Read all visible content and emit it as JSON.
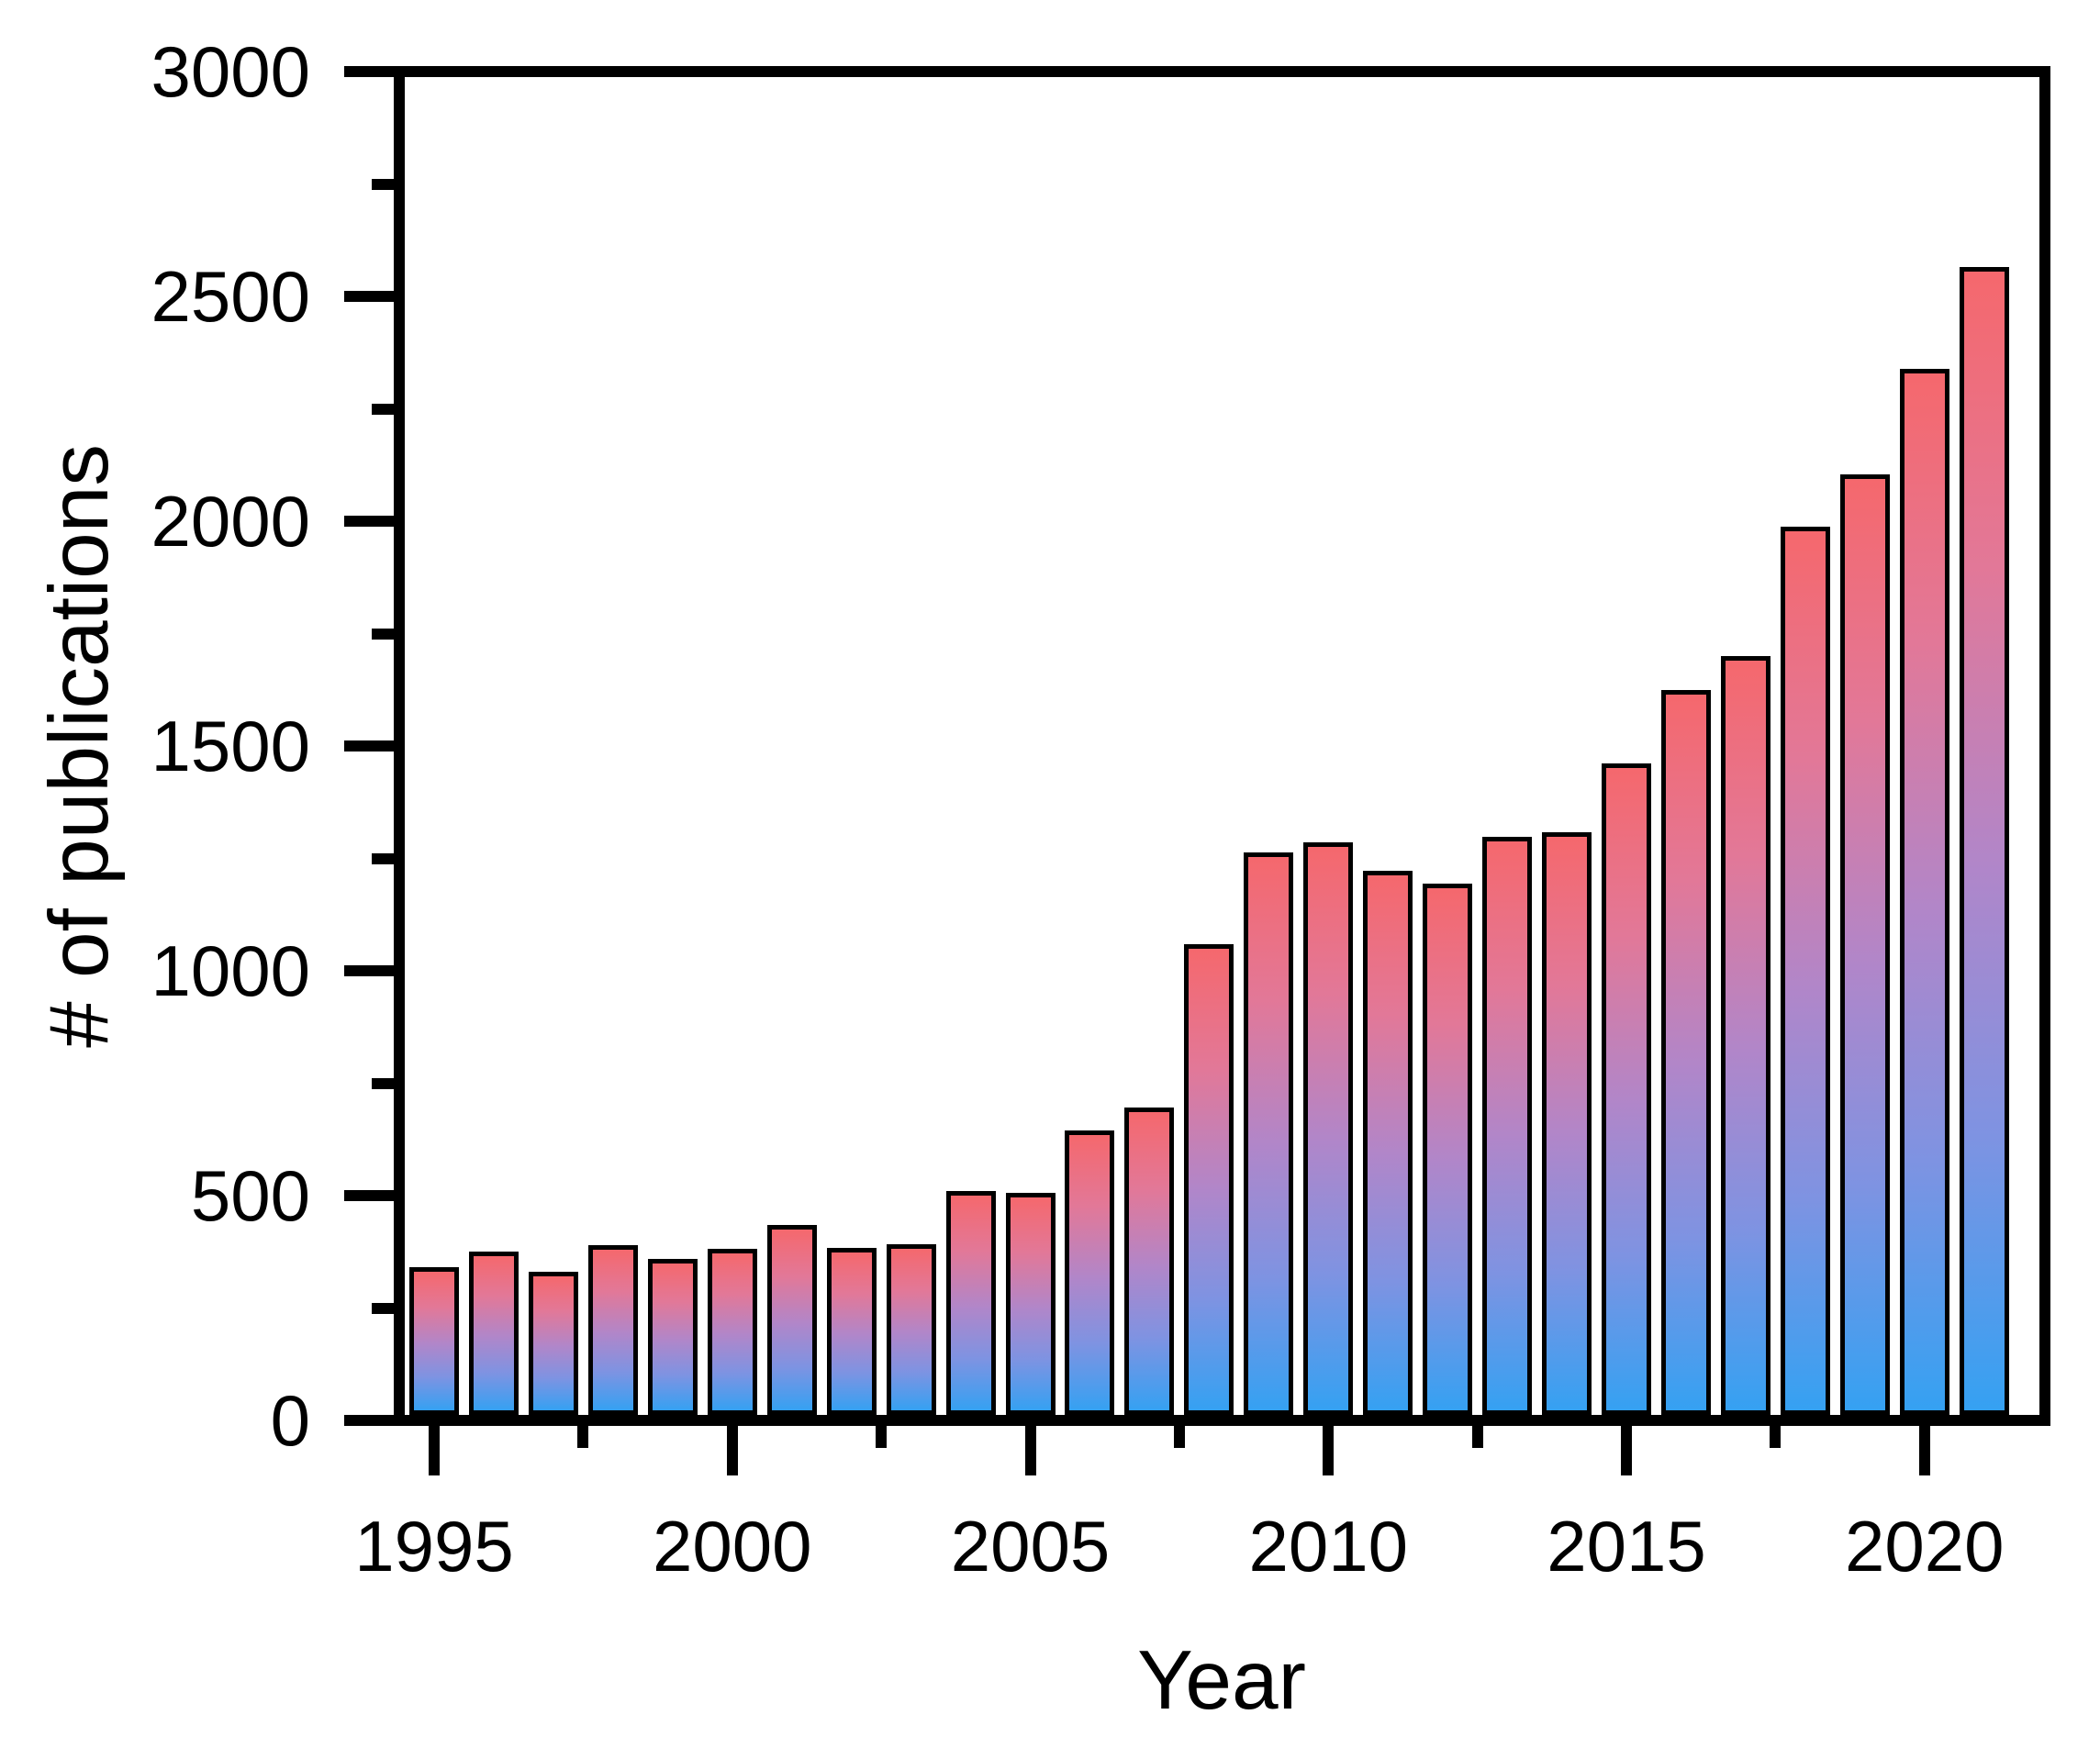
{
  "chart_data": {
    "type": "bar",
    "title": "",
    "xlabel": "Year",
    "ylabel": "# of publications",
    "x": [
      1995,
      1996,
      1997,
      1998,
      1999,
      2000,
      2001,
      2002,
      2003,
      2004,
      2005,
      2006,
      2007,
      2008,
      2009,
      2010,
      2011,
      2012,
      2013,
      2014,
      2015,
      2016,
      2017,
      2018,
      2019,
      2020,
      2021
    ],
    "values": [
      340,
      376,
      330,
      389,
      359,
      382,
      434,
      384,
      391,
      510,
      506,
      645,
      695,
      1060,
      1263,
      1285,
      1223,
      1193,
      1297,
      1308,
      1461,
      1625,
      1701,
      1987,
      2104,
      2338,
      2565
    ],
    "ylim": [
      0,
      3000
    ],
    "y_major_ticks": [
      0,
      500,
      1000,
      1500,
      2000,
      2500,
      3000
    ],
    "y_major_tick_labels": [
      "0",
      "500",
      "1000",
      "1500",
      "2000",
      "2500",
      "3000"
    ],
    "y_minor_ticks": [
      250,
      750,
      1250,
      1750,
      2250,
      2750
    ],
    "x_major_ticks": [
      1995,
      2000,
      2005,
      2010,
      2015,
      2020
    ],
    "x_major_tick_labels": [
      "1995",
      "2000",
      "2005",
      "2010",
      "2015",
      "2020"
    ],
    "x_minor_ticks": [
      1997.5,
      2002.5,
      2007.5,
      2012.5,
      2017.5
    ],
    "grid": false,
    "legend": null,
    "colors": {
      "bar_gradient_top": "#f5686d",
      "bar_gradient_upper": "#e27898",
      "bar_gradient_mid": "#b186c9",
      "bar_gradient_lower": "#7e93e2",
      "bar_gradient_bottom": "#35a1f2",
      "bar_stroke": "#000000",
      "axis": "#000000",
      "background": "#ffffff"
    }
  }
}
